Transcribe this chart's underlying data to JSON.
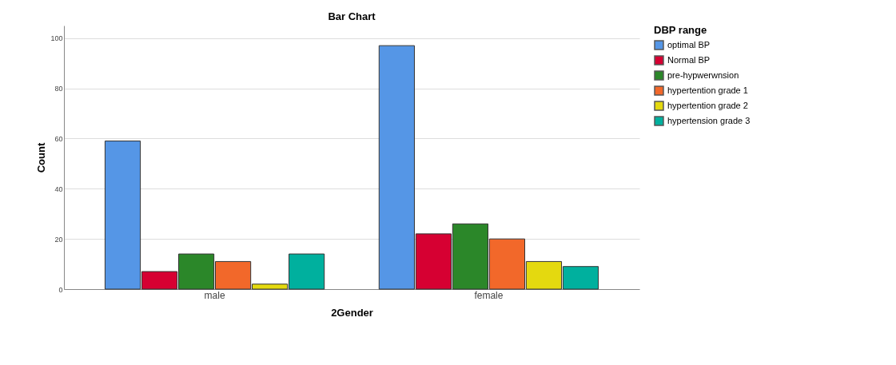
{
  "chart_data": {
    "type": "bar",
    "title": "Bar Chart",
    "xlabel": "2Gender",
    "ylabel": "Count",
    "legend_title": "DBP range",
    "categories": [
      "male",
      "female"
    ],
    "series": [
      {
        "name": "optimal BP",
        "color": "#5596e6",
        "values": [
          59,
          97
        ]
      },
      {
        "name": "Normal BP",
        "color": "#d60032",
        "values": [
          7,
          22
        ]
      },
      {
        "name": "pre-hypwerwnsion",
        "color": "#2b8729",
        "values": [
          14,
          26
        ]
      },
      {
        "name": "hypertention grade 1",
        "color": "#f2682a",
        "values": [
          11,
          20
        ]
      },
      {
        "name": "hypertention grade 2",
        "color": "#e4d90f",
        "values": [
          2,
          11
        ]
      },
      {
        "name": "hypertension grade 3",
        "color": "#00b09e",
        "values": [
          14,
          9
        ]
      }
    ],
    "ylim": [
      0,
      105
    ],
    "yticks": [
      0,
      20,
      40,
      60,
      80,
      100
    ],
    "grid": "y",
    "legend": "top right"
  }
}
